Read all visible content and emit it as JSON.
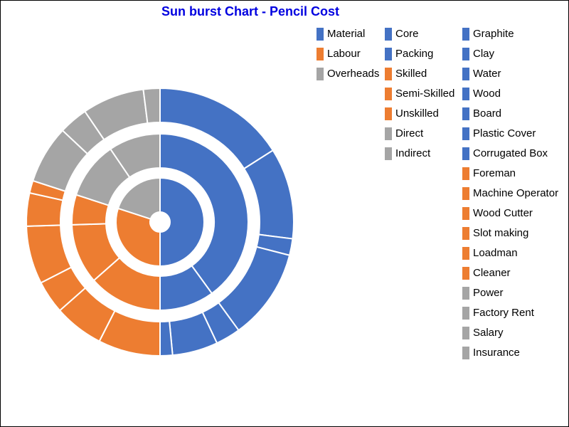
{
  "chart_data": {
    "type": "sunburst",
    "title": "Sun burst Chart - Pencil Cost",
    "nodes": [
      {
        "name": "Material",
        "color": "#4472c4",
        "value": 50,
        "children": [
          {
            "name": "Core",
            "value": 40,
            "children": [
              {
                "name": "Graphite",
                "value": 16
              },
              {
                "name": "Clay",
                "value": 11
              },
              {
                "name": "Water",
                "value": 2
              },
              {
                "name": "Wood",
                "value": 11
              }
            ]
          },
          {
            "name": "Packing",
            "value": 10,
            "children": [
              {
                "name": "Board",
                "value": 3
              },
              {
                "name": "Plastic Cover",
                "value": 5.5
              },
              {
                "name": "Corrugated Box",
                "value": 1.5
              }
            ]
          }
        ]
      },
      {
        "name": "Labour",
        "color": "#ed7d31",
        "value": 30,
        "children": [
          {
            "name": "Skilled",
            "value": 13.5,
            "children": [
              {
                "name": "Foreman",
                "value": 7.5
              },
              {
                "name": "Machine Operator",
                "value": 6
              }
            ]
          },
          {
            "name": "Semi-Skilled",
            "value": 11,
            "children": [
              {
                "name": "Wood Cutter",
                "value": 4
              },
              {
                "name": "Slot making",
                "value": 7
              }
            ]
          },
          {
            "name": "Unskilled",
            "value": 5.5,
            "children": [
              {
                "name": "Loadman",
                "value": 4
              },
              {
                "name": "Cleaner",
                "value": 1.5
              }
            ]
          }
        ]
      },
      {
        "name": "Overheads",
        "color": "#a5a5a5",
        "value": 20,
        "children": [
          {
            "name": "Direct",
            "value": 10.5,
            "children": [
              {
                "name": "Power",
                "value": 7
              },
              {
                "name": "Factory Rent",
                "value": 3.5
              }
            ]
          },
          {
            "name": "Indirect",
            "value": 9.5,
            "children": [
              {
                "name": "Salary",
                "value": 7.5
              },
              {
                "name": "Insurance",
                "value": 2
              }
            ]
          }
        ]
      }
    ]
  }
}
